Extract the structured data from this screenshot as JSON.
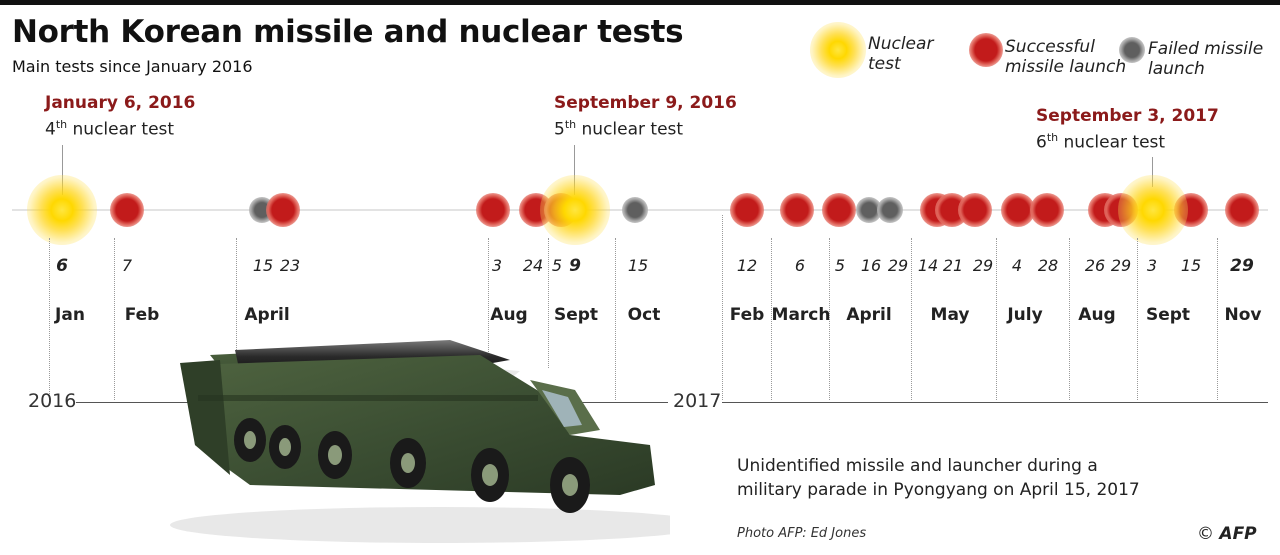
{
  "header": {
    "title": "North Korean missile and nuclear tests",
    "subtitle": "Main tests since January 2016"
  },
  "legend": {
    "nuclear": "Nuclear\ntest",
    "success": "Successful\nmissile launch",
    "failed": "Failed missile\nlaunch"
  },
  "callouts": {
    "c1": {
      "date": "January 6, 2016",
      "num": "4",
      "sup": "th",
      "text": " nuclear test"
    },
    "c2": {
      "date": "September 9, 2016",
      "num": "5",
      "sup": "th",
      "text": " nuclear test"
    },
    "c3": {
      "date": "September 3, 2017",
      "num": "6",
      "sup": "th",
      "text": " nuclear test"
    }
  },
  "timeline": {
    "years": [
      "2016",
      "2017"
    ],
    "months": [
      "Jan",
      "Feb",
      "April",
      "Aug",
      "Sept",
      "Oct",
      "Feb",
      "March",
      "April",
      "May",
      "July",
      "Aug",
      "Sept",
      "Nov"
    ],
    "days": [
      "6",
      "7",
      "15",
      "23",
      "3",
      "24",
      "5",
      "9",
      "15",
      "12",
      "6",
      "5",
      "16",
      "29",
      "14",
      "21",
      "29",
      "4",
      "28",
      "26",
      "29",
      "3",
      "15",
      "29"
    ],
    "events": [
      {
        "date": "2016-01-06",
        "type": "nuclear"
      },
      {
        "date": "2016-02-07",
        "type": "success"
      },
      {
        "date": "2016-04-15",
        "type": "failed"
      },
      {
        "date": "2016-04-23",
        "type": "success"
      },
      {
        "date": "2016-08-03",
        "type": "success"
      },
      {
        "date": "2016-08-24",
        "type": "success"
      },
      {
        "date": "2016-09-05",
        "type": "success"
      },
      {
        "date": "2016-09-09",
        "type": "nuclear"
      },
      {
        "date": "2016-10-15",
        "type": "failed"
      },
      {
        "date": "2017-02-12",
        "type": "success"
      },
      {
        "date": "2017-03-06",
        "type": "success"
      },
      {
        "date": "2017-04-05",
        "type": "success"
      },
      {
        "date": "2017-04-16",
        "type": "failed"
      },
      {
        "date": "2017-04-29",
        "type": "failed"
      },
      {
        "date": "2017-05-14",
        "type": "success"
      },
      {
        "date": "2017-05-21",
        "type": "success"
      },
      {
        "date": "2017-05-29",
        "type": "success"
      },
      {
        "date": "2017-07-04",
        "type": "success"
      },
      {
        "date": "2017-07-28",
        "type": "success"
      },
      {
        "date": "2017-08-26",
        "type": "success"
      },
      {
        "date": "2017-08-29",
        "type": "success"
      },
      {
        "date": "2017-09-03",
        "type": "nuclear"
      },
      {
        "date": "2017-09-15",
        "type": "success"
      },
      {
        "date": "2017-11-29",
        "type": "success"
      }
    ]
  },
  "photo": {
    "caption": "Unidentified missile and launcher during a military parade in Pyongyang on April 15, 2017",
    "credit": "Photo AFP: Ed Jones",
    "copyright": "©",
    "agency": "AFP"
  },
  "colors": {
    "success": "#c21b1b",
    "failed": "#5f5f5f",
    "nuclear": "#ffd800",
    "callout_date": "#8b1a1a"
  }
}
